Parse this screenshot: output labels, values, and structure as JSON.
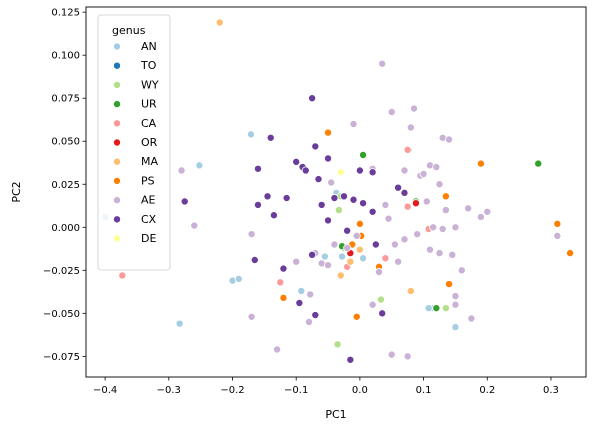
{
  "chart_data": {
    "type": "scatter",
    "title": "",
    "xlabel": "PC1",
    "ylabel": "PC2",
    "xlim": [
      -0.43,
      0.355
    ],
    "ylim": [
      -0.087,
      0.128
    ],
    "xticks": [
      -0.4,
      -0.3,
      -0.2,
      -0.1,
      0.0,
      0.1,
      0.2,
      0.3
    ],
    "xtick_labels": [
      "−0.4",
      "−0.3",
      "−0.2",
      "−0.1",
      "0.0",
      "0.1",
      "0.2",
      "0.3"
    ],
    "yticks": [
      -0.075,
      -0.05,
      -0.025,
      0.0,
      0.025,
      0.05,
      0.075,
      0.1,
      0.125
    ],
    "ytick_labels": [
      "−0.075",
      "−0.050",
      "−0.025",
      "0.000",
      "0.025",
      "0.050",
      "0.075",
      "0.100",
      "0.125"
    ],
    "grid": false,
    "legend": {
      "title": "genus",
      "position": "top-left"
    },
    "series": [
      {
        "name": "AN",
        "color": "#a6cee3",
        "points": [
          [
            -0.4,
            0.006
          ],
          [
            -0.283,
            -0.056
          ],
          [
            -0.252,
            0.036
          ],
          [
            -0.171,
            0.054
          ],
          [
            -0.2,
            -0.031
          ],
          [
            -0.19,
            -0.03
          ],
          [
            -0.092,
            -0.037
          ],
          [
            -0.055,
            -0.017
          ],
          [
            -0.037,
            0.02
          ],
          [
            -0.028,
            -0.017
          ],
          [
            -0.02,
            -0.012
          ],
          [
            0.005,
            -0.018
          ],
          [
            0.15,
            -0.058
          ],
          [
            0.077,
            0.045
          ],
          [
            0.113,
            -0.047
          ],
          [
            0.108,
            -0.047
          ]
        ]
      },
      {
        "name": "TO",
        "color": "#1f78b4",
        "points": []
      },
      {
        "name": "WY",
        "color": "#b2df8a",
        "points": [
          [
            -0.033,
            0.01
          ],
          [
            -0.025,
            -0.012
          ],
          [
            -0.035,
            -0.068
          ],
          [
            0.033,
            -0.042
          ],
          [
            0.135,
            -0.047
          ],
          [
            -0.03,
            0.018
          ]
        ]
      },
      {
        "name": "UR",
        "color": "#33a02c",
        "points": [
          [
            -0.028,
            -0.011
          ],
          [
            0.005,
            0.042
          ],
          [
            0.28,
            0.037
          ],
          [
            0.12,
            -0.047
          ],
          [
            0.088,
            0.015
          ]
        ]
      },
      {
        "name": "CA",
        "color": "#fb9a99",
        "points": [
          [
            -0.373,
            -0.028
          ],
          [
            -0.125,
            -0.032
          ],
          [
            -0.02,
            -0.023
          ],
          [
            0.075,
            0.045
          ],
          [
            0.075,
            0.012
          ],
          [
            0.108,
            -0.001
          ],
          [
            0.04,
            -0.018
          ]
        ]
      },
      {
        "name": "OR",
        "color": "#e31a1c",
        "points": [
          [
            -0.015,
            -0.015
          ],
          [
            0.088,
            0.014
          ]
        ]
      },
      {
        "name": "MA",
        "color": "#fdbf6f",
        "points": [
          [
            -0.22,
            0.119
          ],
          [
            -0.03,
            -0.028
          ],
          [
            0.08,
            -0.037
          ],
          [
            0.0,
            -0.013
          ],
          [
            -0.015,
            -0.02
          ]
        ]
      },
      {
        "name": "PS",
        "color": "#ff7f00",
        "points": [
          [
            -0.12,
            -0.041
          ],
          [
            -0.05,
            0.055
          ],
          [
            0.0,
            0.002
          ],
          [
            -0.005,
            -0.052
          ],
          [
            -0.012,
            -0.01
          ],
          [
            0.03,
            -0.023
          ],
          [
            0.135,
            0.018
          ],
          [
            0.19,
            0.037
          ],
          [
            0.31,
            0.002
          ],
          [
            0.33,
            -0.015
          ],
          [
            0.14,
            -0.033
          ],
          [
            0.002,
            -0.005
          ]
        ]
      },
      {
        "name": "AE",
        "color": "#cab2d6",
        "points": [
          [
            -0.28,
            0.033
          ],
          [
            -0.26,
            0.001
          ],
          [
            -0.17,
            -0.052
          ],
          [
            -0.17,
            -0.004
          ],
          [
            -0.13,
            -0.071
          ],
          [
            -0.1,
            -0.02
          ],
          [
            -0.078,
            -0.039
          ],
          [
            -0.07,
            -0.015
          ],
          [
            -0.06,
            -0.021
          ],
          [
            -0.05,
            -0.022
          ],
          [
            -0.045,
            0.026
          ],
          [
            -0.04,
            -0.01
          ],
          [
            -0.005,
            -0.005
          ],
          [
            -0.01,
            0.06
          ],
          [
            0.02,
            0.034
          ],
          [
            0.035,
            0.095
          ],
          [
            0.05,
            0.067
          ],
          [
            0.03,
            -0.026
          ],
          [
            0.045,
            0.005
          ],
          [
            0.055,
            -0.01
          ],
          [
            0.06,
            -0.02
          ],
          [
            0.07,
            0.033
          ],
          [
            0.07,
            -0.007
          ],
          [
            0.08,
            0.058
          ],
          [
            0.085,
            0.069
          ],
          [
            0.095,
            0.03
          ],
          [
            0.1,
            0.031
          ],
          [
            0.105,
            0.015
          ],
          [
            0.11,
            0.036
          ],
          [
            0.115,
            0.0
          ],
          [
            0.12,
            0.035
          ],
          [
            0.125,
            0.025
          ],
          [
            0.13,
            0.052
          ],
          [
            0.135,
            0.01
          ],
          [
            0.14,
            0.051
          ],
          [
            0.145,
            -0.016
          ],
          [
            0.15,
            0.0
          ],
          [
            0.16,
            -0.025
          ],
          [
            0.17,
            0.011
          ],
          [
            0.19,
            0.006
          ],
          [
            0.2,
            0.009
          ],
          [
            0.175,
            -0.053
          ],
          [
            0.31,
            -0.005
          ],
          [
            0.05,
            -0.074
          ],
          [
            0.075,
            -0.075
          ],
          [
            0.11,
            -0.013
          ],
          [
            0.125,
            -0.015
          ],
          [
            0.15,
            -0.04
          ],
          [
            -0.02,
            -0.012
          ],
          [
            0.04,
            0.013
          ],
          [
            0.09,
            -0.004
          ],
          [
            0.13,
            -0.001
          ],
          [
            0.15,
            -0.045
          ],
          [
            -0.08,
            -0.055
          ],
          [
            0.02,
            -0.045
          ]
        ]
      },
      {
        "name": "CX",
        "color": "#6a3d9a",
        "points": [
          [
            -0.275,
            0.015
          ],
          [
            -0.14,
            0.052
          ],
          [
            -0.16,
            0.034
          ],
          [
            -0.16,
            0.013
          ],
          [
            -0.145,
            0.018
          ],
          [
            -0.135,
            0.007
          ],
          [
            -0.12,
            -0.024
          ],
          [
            -0.165,
            -0.019
          ],
          [
            -0.115,
            0.017
          ],
          [
            -0.1,
            0.038
          ],
          [
            -0.09,
            0.035
          ],
          [
            -0.085,
            0.033
          ],
          [
            -0.075,
            0.075
          ],
          [
            -0.07,
            0.047
          ],
          [
            -0.065,
            0.028
          ],
          [
            -0.075,
            -0.016
          ],
          [
            -0.07,
            -0.051
          ],
          [
            -0.095,
            -0.044
          ],
          [
            -0.06,
            0.013
          ],
          [
            -0.05,
            0.04
          ],
          [
            -0.04,
            0.017
          ],
          [
            -0.025,
            0.018
          ],
          [
            -0.01,
            0.016
          ],
          [
            0.0,
            0.033
          ],
          [
            0.005,
            0.014
          ],
          [
            0.02,
            0.032
          ],
          [
            -0.015,
            -0.077
          ],
          [
            0.035,
            -0.05
          ],
          [
            0.06,
            0.023
          ],
          [
            0.07,
            0.02
          ],
          [
            -0.05,
            0.004
          ],
          [
            0.02,
            0.009
          ],
          [
            0.025,
            -0.01
          ],
          [
            -0.02,
            -0.002
          ]
        ]
      },
      {
        "name": "DE",
        "color": "#ffff99",
        "points": [
          [
            -0.03,
            0.032
          ]
        ]
      }
    ]
  }
}
